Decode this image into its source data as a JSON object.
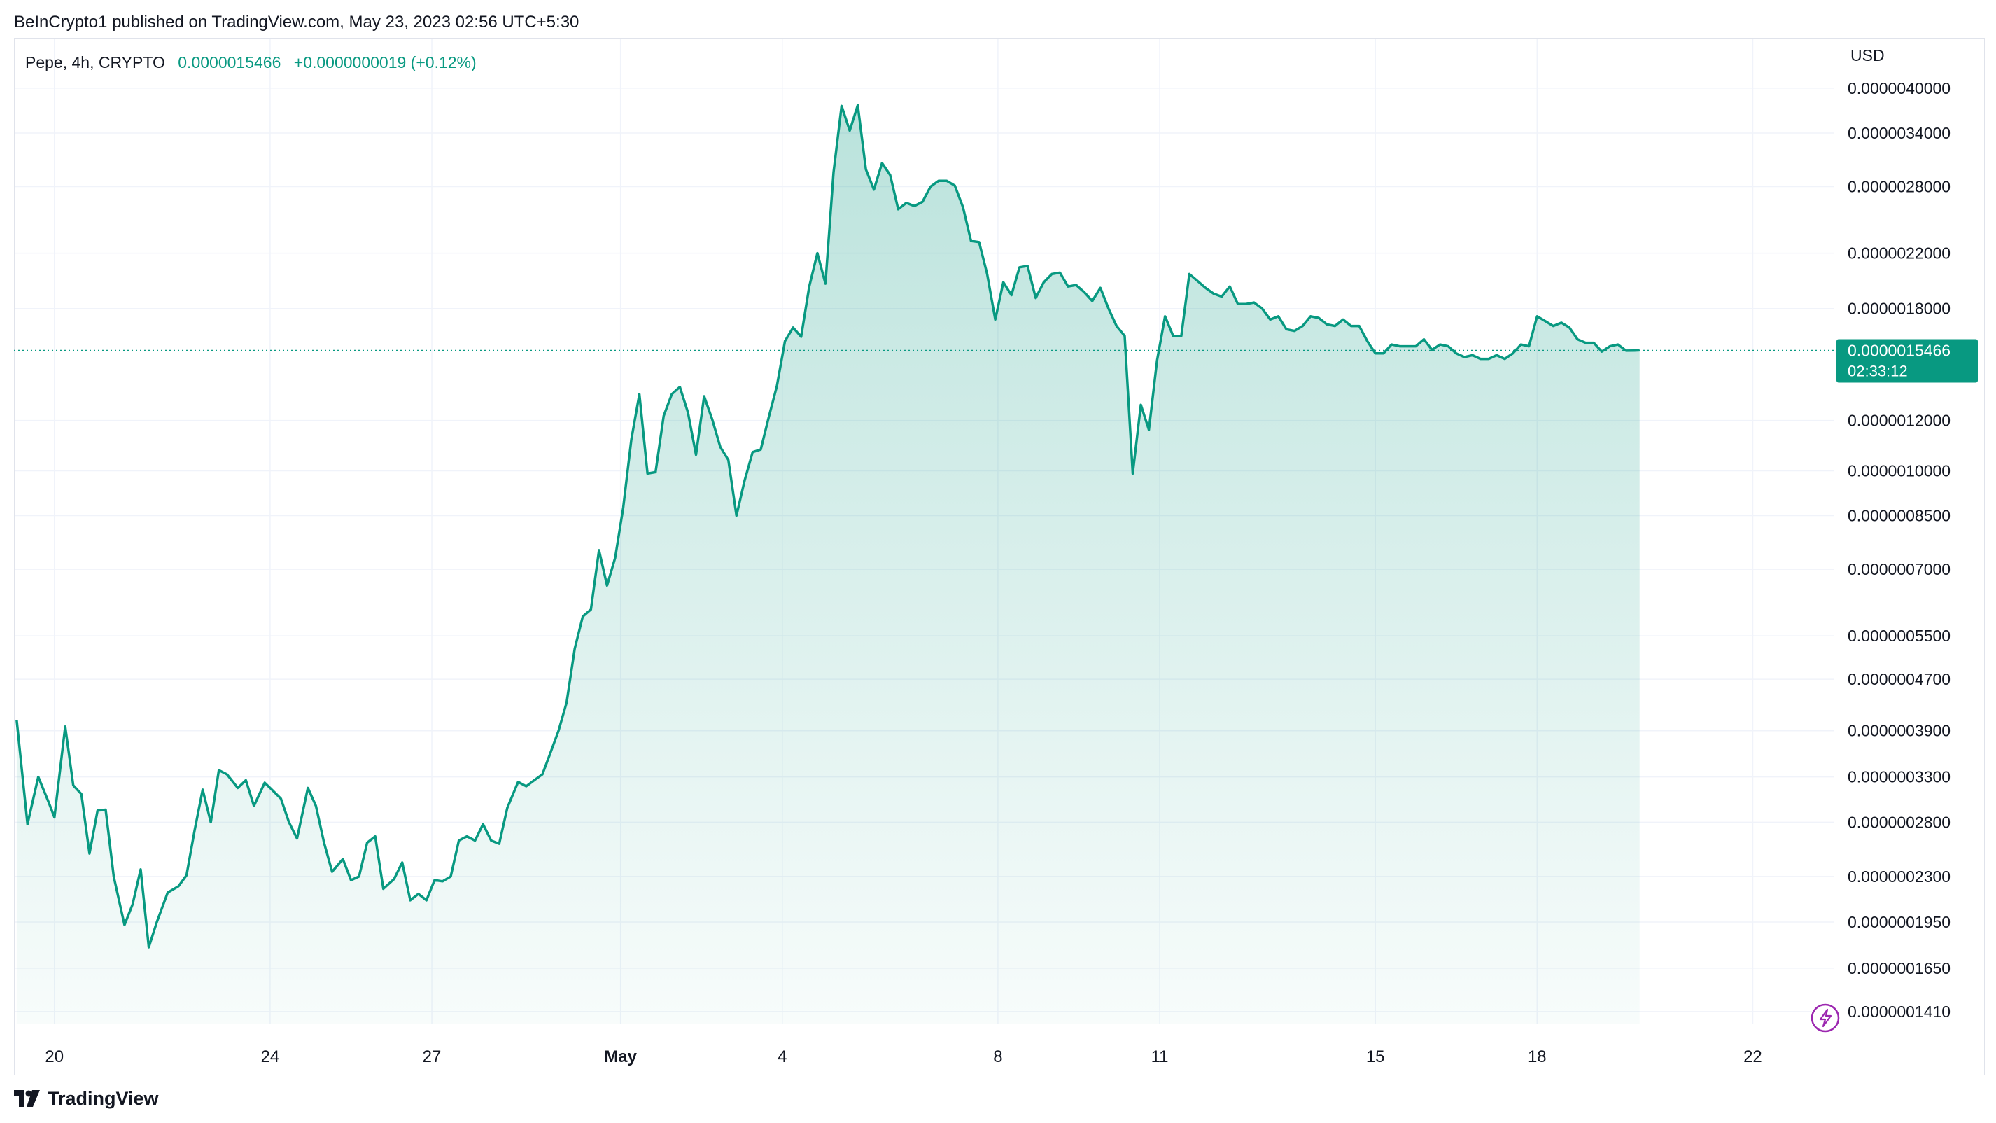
{
  "header": {
    "published": "BeInCrypto1 published on TradingView.com, May 23, 2023 02:56 UTC+5:30"
  },
  "legend": {
    "symbol": "Pepe, 4h, CRYPTO",
    "last": "0.0000015466",
    "change": "+0.0000000019 (+0.12%)"
  },
  "axis": {
    "currency": "USD"
  },
  "price_tag": {
    "price": "0.0000015466",
    "countdown": "02:33:12"
  },
  "brand": {
    "name": "TradingView"
  },
  "colors": {
    "line": "#089981",
    "grid": "#f0f3fa",
    "text": "#131722",
    "lightning": "#9c27b0"
  },
  "chart_data": {
    "type": "area",
    "title": "Pepe, 4h, CRYPTO",
    "ylabel": "USD",
    "yscale": "log",
    "ylim": [
      1.35e-07,
      4.8e-06
    ],
    "y_ticks": [
      {
        "value": 4e-06,
        "label": "0.0000040000"
      },
      {
        "value": 3.4e-06,
        "label": "0.0000034000"
      },
      {
        "value": 2.8e-06,
        "label": "0.0000028000"
      },
      {
        "value": 2.2e-06,
        "label": "0.0000022000"
      },
      {
        "value": 1.8e-06,
        "label": "0.0000018000"
      },
      {
        "value": 1.2e-06,
        "label": "0.0000012000"
      },
      {
        "value": 1e-06,
        "label": "0.0000010000"
      },
      {
        "value": 8.5e-07,
        "label": "0.0000008500"
      },
      {
        "value": 7e-07,
        "label": "0.0000007000"
      },
      {
        "value": 5.5e-07,
        "label": "0.0000005500"
      },
      {
        "value": 4.7e-07,
        "label": "0.0000004700"
      },
      {
        "value": 3.9e-07,
        "label": "0.0000003900"
      },
      {
        "value": 3.3e-07,
        "label": "0.0000003300"
      },
      {
        "value": 2.8e-07,
        "label": "0.0000002800"
      },
      {
        "value": 2.3e-07,
        "label": "0.0000002300"
      },
      {
        "value": 1.95e-07,
        "label": "0.0000001950"
      },
      {
        "value": 1.65e-07,
        "label": "0.0000001650"
      },
      {
        "value": 1.41e-07,
        "label": "0.0000001410"
      }
    ],
    "x_ticks": [
      {
        "day": 20,
        "label": "20",
        "bold": false
      },
      {
        "day": 24,
        "label": "24",
        "bold": false
      },
      {
        "day": 27,
        "label": "27",
        "bold": false
      },
      {
        "day": 30.5,
        "label": "May",
        "bold": true
      },
      {
        "day": 33.5,
        "label": "4",
        "bold": false
      },
      {
        "day": 37.5,
        "label": "8",
        "bold": false
      },
      {
        "day": 40.5,
        "label": "11",
        "bold": false
      },
      {
        "day": 44.5,
        "label": "15",
        "bold": false
      },
      {
        "day": 47.5,
        "label": "18",
        "bold": false
      },
      {
        "day": 51.5,
        "label": "22",
        "bold": false
      }
    ],
    "x_range_days": [
      19.25,
      53.0
    ],
    "current_price": 1.5466e-06,
    "series": [
      {
        "name": "Pepe",
        "points": [
          [
            19.3,
            4.05e-07
          ],
          [
            19.5,
            2.78e-07
          ],
          [
            19.7,
            3.3e-07
          ],
          [
            19.9,
            3e-07
          ],
          [
            20.0,
            2.85e-07
          ],
          [
            20.2,
            3.96e-07
          ],
          [
            20.35,
            3.2e-07
          ],
          [
            20.5,
            3.1e-07
          ],
          [
            20.65,
            2.5e-07
          ],
          [
            20.8,
            2.92e-07
          ],
          [
            20.95,
            2.93e-07
          ],
          [
            21.1,
            2.3e-07
          ],
          [
            21.3,
            1.93e-07
          ],
          [
            21.45,
            2.08e-07
          ],
          [
            21.6,
            2.36e-07
          ],
          [
            21.75,
            1.78e-07
          ],
          [
            21.9,
            1.95e-07
          ],
          [
            22.1,
            2.17e-07
          ],
          [
            22.3,
            2.22e-07
          ],
          [
            22.45,
            2.31e-07
          ],
          [
            22.6,
            2.72e-07
          ],
          [
            22.75,
            3.15e-07
          ],
          [
            22.9,
            2.8e-07
          ],
          [
            23.05,
            3.38e-07
          ],
          [
            23.2,
            3.33e-07
          ],
          [
            23.4,
            3.17e-07
          ],
          [
            23.55,
            3.26e-07
          ],
          [
            23.7,
            2.97e-07
          ],
          [
            23.9,
            3.23e-07
          ],
          [
            24.0,
            3.17e-07
          ],
          [
            24.2,
            3.05e-07
          ],
          [
            24.35,
            2.8e-07
          ],
          [
            24.5,
            2.64e-07
          ],
          [
            24.7,
            3.17e-07
          ],
          [
            24.85,
            2.97e-07
          ],
          [
            25.0,
            2.6e-07
          ],
          [
            25.15,
            2.34e-07
          ],
          [
            25.35,
            2.45e-07
          ],
          [
            25.5,
            2.27e-07
          ],
          [
            25.65,
            2.3e-07
          ],
          [
            25.8,
            2.6e-07
          ],
          [
            25.95,
            2.66e-07
          ],
          [
            26.1,
            2.2e-07
          ],
          [
            26.3,
            2.28e-07
          ],
          [
            26.45,
            2.42e-07
          ],
          [
            26.6,
            2.11e-07
          ],
          [
            26.75,
            2.16e-07
          ],
          [
            26.9,
            2.11e-07
          ],
          [
            27.05,
            2.27e-07
          ],
          [
            27.2,
            2.26e-07
          ],
          [
            27.35,
            2.3e-07
          ],
          [
            27.5,
            2.62e-07
          ],
          [
            27.65,
            2.66e-07
          ],
          [
            27.8,
            2.62e-07
          ],
          [
            27.95,
            2.78e-07
          ],
          [
            28.1,
            2.62e-07
          ],
          [
            28.25,
            2.59e-07
          ],
          [
            28.4,
            2.95e-07
          ],
          [
            28.6,
            3.24e-07
          ],
          [
            28.75,
            3.19e-07
          ],
          [
            28.9,
            3.26e-07
          ],
          [
            29.05,
            3.33e-07
          ],
          [
            29.2,
            3.6e-07
          ],
          [
            29.35,
            3.9e-07
          ],
          [
            29.5,
            4.32e-07
          ],
          [
            29.65,
            5.25e-07
          ],
          [
            29.8,
            5.9e-07
          ],
          [
            29.95,
            6.05e-07
          ],
          [
            30.1,
            7.5e-07
          ],
          [
            30.25,
            6.6e-07
          ],
          [
            30.4,
            7.3e-07
          ],
          [
            30.55,
            8.75e-07
          ],
          [
            30.7,
            1.12e-06
          ],
          [
            30.85,
            1.32e-06
          ],
          [
            31.0,
            9.9e-07
          ],
          [
            31.15,
            9.95e-07
          ],
          [
            31.3,
            1.22e-06
          ],
          [
            31.45,
            1.32e-06
          ],
          [
            31.6,
            1.355e-06
          ],
          [
            31.75,
            1.235e-06
          ],
          [
            31.9,
            1.06e-06
          ],
          [
            32.05,
            1.31e-06
          ],
          [
            32.2,
            1.205e-06
          ],
          [
            32.35,
            1.09e-06
          ],
          [
            32.5,
            1.04e-06
          ],
          [
            32.65,
            8.5e-07
          ],
          [
            32.8,
            9.65e-07
          ],
          [
            32.95,
            1.07e-06
          ],
          [
            33.1,
            1.08e-06
          ],
          [
            33.25,
            1.215e-06
          ],
          [
            33.4,
            1.36e-06
          ],
          [
            33.55,
            1.6e-06
          ],
          [
            33.7,
            1.68e-06
          ],
          [
            33.85,
            1.625e-06
          ],
          [
            34.0,
            1.95e-06
          ],
          [
            34.15,
            2.2e-06
          ],
          [
            34.3,
            1.97e-06
          ],
          [
            34.45,
            2.95e-06
          ],
          [
            34.6,
            3.75e-06
          ],
          [
            34.75,
            3.43e-06
          ],
          [
            34.9,
            3.76e-06
          ],
          [
            35.05,
            2.98e-06
          ],
          [
            35.2,
            2.77e-06
          ],
          [
            35.35,
            3.05e-06
          ],
          [
            35.5,
            2.92e-06
          ],
          [
            35.65,
            2.58e-06
          ],
          [
            35.8,
            2.64e-06
          ],
          [
            35.95,
            2.61e-06
          ],
          [
            36.1,
            2.65e-06
          ],
          [
            36.25,
            2.8e-06
          ],
          [
            36.4,
            2.86e-06
          ],
          [
            36.55,
            2.86e-06
          ],
          [
            36.7,
            2.81e-06
          ],
          [
            36.85,
            2.6e-06
          ],
          [
            37.0,
            2.3e-06
          ],
          [
            37.15,
            2.29e-06
          ],
          [
            37.3,
            2.04e-06
          ],
          [
            37.45,
            1.73e-06
          ],
          [
            37.6,
            1.98e-06
          ],
          [
            37.75,
            1.89e-06
          ],
          [
            37.9,
            2.09e-06
          ],
          [
            38.05,
            2.1e-06
          ],
          [
            38.2,
            1.87e-06
          ],
          [
            38.35,
            1.98e-06
          ],
          [
            38.5,
            2.04e-06
          ],
          [
            38.65,
            2.05e-06
          ],
          [
            38.8,
            1.95e-06
          ],
          [
            38.95,
            1.96e-06
          ],
          [
            39.1,
            1.91e-06
          ],
          [
            39.25,
            1.85e-06
          ],
          [
            39.4,
            1.94e-06
          ],
          [
            39.55,
            1.8e-06
          ],
          [
            39.7,
            1.69e-06
          ],
          [
            39.85,
            1.63e-06
          ],
          [
            40.0,
            9.9e-07
          ],
          [
            40.15,
            1.27e-06
          ],
          [
            40.3,
            1.16e-06
          ],
          [
            40.45,
            1.49e-06
          ],
          [
            40.6,
            1.75e-06
          ],
          [
            40.75,
            1.63e-06
          ],
          [
            40.9,
            1.63e-06
          ],
          [
            41.05,
            2.04e-06
          ],
          [
            41.2,
            1.99e-06
          ],
          [
            41.35,
            1.94e-06
          ],
          [
            41.5,
            1.9e-06
          ],
          [
            41.65,
            1.88e-06
          ],
          [
            41.8,
            1.95e-06
          ],
          [
            41.95,
            1.83e-06
          ],
          [
            42.1,
            1.83e-06
          ],
          [
            42.25,
            1.84e-06
          ],
          [
            42.4,
            1.8e-06
          ],
          [
            42.55,
            1.73e-06
          ],
          [
            42.7,
            1.75e-06
          ],
          [
            42.85,
            1.67e-06
          ],
          [
            43.0,
            1.66e-06
          ],
          [
            43.15,
            1.69e-06
          ],
          [
            43.3,
            1.75e-06
          ],
          [
            43.45,
            1.74e-06
          ],
          [
            43.6,
            1.7e-06
          ],
          [
            43.75,
            1.69e-06
          ],
          [
            43.9,
            1.73e-06
          ],
          [
            44.05,
            1.69e-06
          ],
          [
            44.2,
            1.69e-06
          ],
          [
            44.35,
            1.6e-06
          ],
          [
            44.5,
            1.53e-06
          ],
          [
            44.65,
            1.53e-06
          ],
          [
            44.8,
            1.58e-06
          ],
          [
            44.95,
            1.57e-06
          ],
          [
            45.1,
            1.57e-06
          ],
          [
            45.25,
            1.57e-06
          ],
          [
            45.4,
            1.61e-06
          ],
          [
            45.55,
            1.55e-06
          ],
          [
            45.7,
            1.58e-06
          ],
          [
            45.85,
            1.57e-06
          ],
          [
            46.0,
            1.53e-06
          ],
          [
            46.15,
            1.51e-06
          ],
          [
            46.3,
            1.52e-06
          ],
          [
            46.45,
            1.5e-06
          ],
          [
            46.6,
            1.5e-06
          ],
          [
            46.75,
            1.52e-06
          ],
          [
            46.9,
            1.5e-06
          ],
          [
            47.05,
            1.53e-06
          ],
          [
            47.2,
            1.58e-06
          ],
          [
            47.35,
            1.57e-06
          ],
          [
            47.5,
            1.75e-06
          ],
          [
            47.65,
            1.72e-06
          ],
          [
            47.8,
            1.69e-06
          ],
          [
            47.95,
            1.71e-06
          ],
          [
            48.1,
            1.68e-06
          ],
          [
            48.25,
            1.61e-06
          ],
          [
            48.4,
            1.59e-06
          ],
          [
            48.55,
            1.59e-06
          ],
          [
            48.7,
            1.54e-06
          ],
          [
            48.85,
            1.57e-06
          ],
          [
            49.0,
            1.58e-06
          ],
          [
            49.15,
            1.545e-06
          ],
          [
            49.3,
            1.546e-06
          ],
          [
            49.4,
            1.547e-06
          ]
        ]
      }
    ]
  }
}
